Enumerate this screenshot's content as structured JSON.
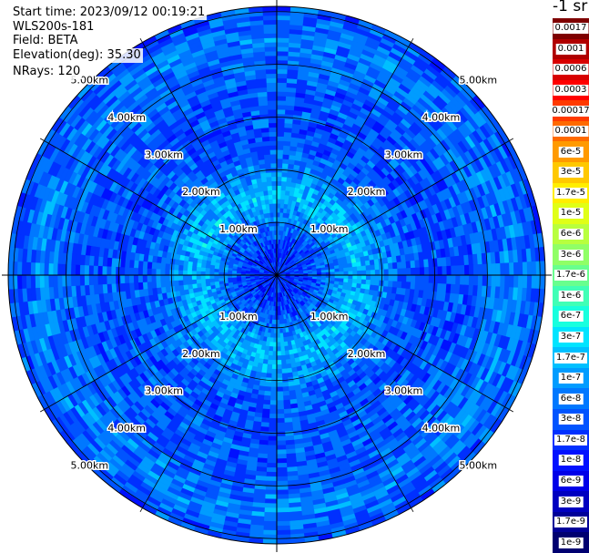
{
  "header": {
    "start_time": "Start time: 2023/09/12 00:19:21",
    "instrument": "WLS200s-181",
    "field": "Field: BETA",
    "elevation": "Elevation(deg): 35.30",
    "nrays": "NRays: 120"
  },
  "colorbar": {
    "title": "-1 sr",
    "labels": [
      "0.0017",
      "0.001",
      "0.0006",
      "0.0003",
      "0.00017",
      "0.0001",
      "6e-5",
      "3e-5",
      "1.7e-5",
      "1e-5",
      "6e-6",
      "3e-6",
      "1.7e-6",
      "1e-6",
      "6e-7",
      "3e-7",
      "1.7e-7",
      "1e-7",
      "6e-8",
      "3e-8",
      "1.7e-8",
      "1e-8",
      "6e-9",
      "3e-9",
      "1.7e-9",
      "1e-9"
    ],
    "colors": [
      "#7f0000",
      "#b00000",
      "#d80000",
      "#ff0000",
      "#ff3a00",
      "#ff6a00",
      "#ff9a00",
      "#ffc800",
      "#ffee00",
      "#e0ff16",
      "#b8ff3e",
      "#90ff66",
      "#68ff8e",
      "#40ffb6",
      "#18ffde",
      "#00e4ff",
      "#00c0ff",
      "#009cff",
      "#0078ff",
      "#0054ff",
      "#0030ff",
      "#0010ff",
      "#0000e8",
      "#0000c0",
      "#000098",
      "#000070"
    ]
  },
  "chart_data": {
    "type": "heatmap",
    "projection": "polar-ppi",
    "field": "BETA",
    "elevation_deg": 35.3,
    "n_rays": 120,
    "range_rings_km": [
      1,
      2,
      3,
      4,
      5
    ],
    "range_ring_labels": [
      "1.00km",
      "2.00km",
      "3.00km",
      "4.00km",
      "5.00km"
    ],
    "max_range_km": 5.1,
    "value_range": [
      1e-09,
      0.0017
    ],
    "log_scale": true,
    "typical_value_by_range": [
      {
        "range_km": 0.5,
        "value": 1.7e-08
      },
      {
        "range_km": 1.5,
        "value": 1.7e-07
      },
      {
        "range_km": 2.5,
        "value": 3e-08
      },
      {
        "range_km": 3.5,
        "value": 3e-08
      },
      {
        "range_km": 4.5,
        "value": 6e-08
      },
      {
        "range_km": 5.0,
        "value": 3e-08
      }
    ],
    "grid": true
  }
}
